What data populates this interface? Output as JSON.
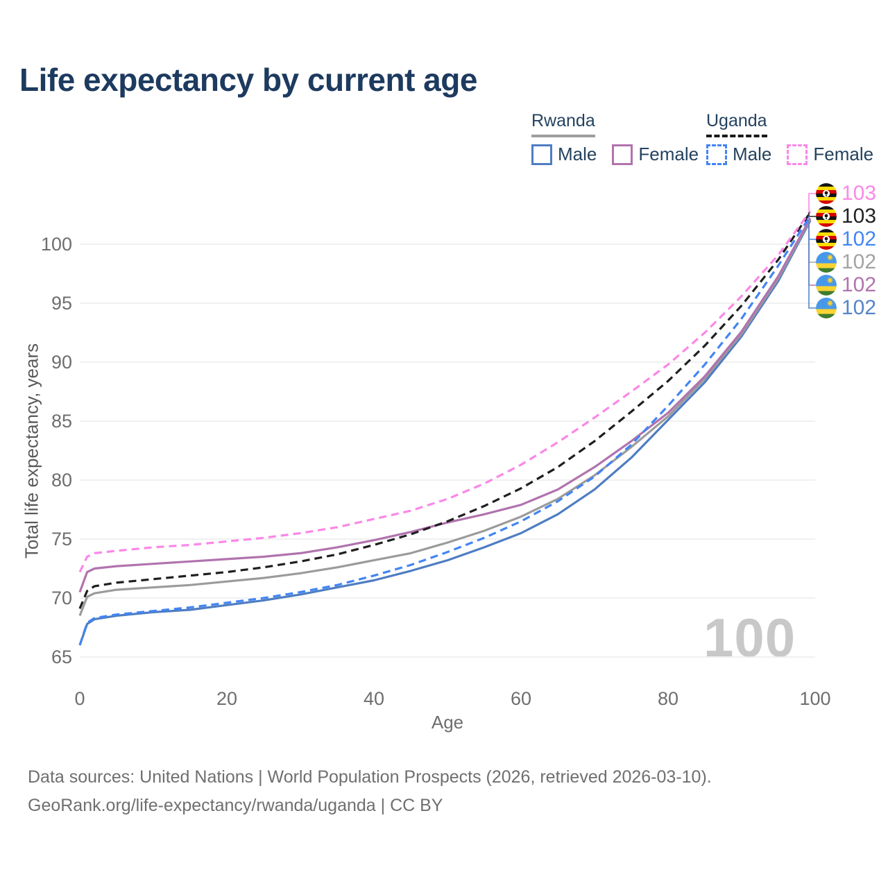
{
  "title": "Life expectancy by current age",
  "watermark": "100",
  "legend": {
    "groups": [
      {
        "country": "Rwanda",
        "underline_style": "solid",
        "underline_color": "#9e9e9e",
        "items": [
          {
            "label": "Male",
            "color": "#4e7dc2",
            "dash": false
          },
          {
            "label": "Female",
            "color": "#b173ae",
            "dash": false
          }
        ]
      },
      {
        "country": "Uganda",
        "underline_style": "dashed",
        "underline_color": "#1a1a1a",
        "items": [
          {
            "label": "Male",
            "color": "#4285f4",
            "dash": true
          },
          {
            "label": "Female",
            "color": "#fb87e8",
            "dash": true
          }
        ]
      }
    ]
  },
  "chart_data": {
    "type": "line",
    "title": "Life expectancy by current age",
    "xlabel": "Age",
    "ylabel": "Total life expectancy, years",
    "xlim": [
      0,
      100
    ],
    "ylim": [
      65,
      100
    ],
    "xticks": [
      0,
      20,
      40,
      60,
      80,
      100
    ],
    "yticks": [
      65,
      70,
      75,
      80,
      85,
      90,
      95,
      100
    ],
    "grid": "horizontal",
    "x": [
      0,
      1,
      2,
      5,
      10,
      15,
      20,
      25,
      30,
      35,
      40,
      45,
      50,
      55,
      60,
      65,
      70,
      75,
      80,
      85,
      90,
      95,
      100
    ],
    "series": [
      {
        "name": "Rwanda Male",
        "country": "Rwanda",
        "sex": "male",
        "color": "#4e7dc2",
        "dash": false,
        "values": [
          66.0,
          67.8,
          68.2,
          68.5,
          68.8,
          69.0,
          69.4,
          69.8,
          70.3,
          70.9,
          71.5,
          72.3,
          73.2,
          74.3,
          75.5,
          77.1,
          79.2,
          81.9,
          85.1,
          88.3,
          92.2,
          96.9,
          102.0
        ]
      },
      {
        "name": "Rwanda",
        "country": "Rwanda",
        "sex": "both",
        "color": "#9b9b9b",
        "dash": false,
        "values": [
          68.5,
          70.1,
          70.4,
          70.7,
          70.9,
          71.1,
          71.4,
          71.7,
          72.1,
          72.6,
          73.2,
          73.8,
          74.7,
          75.7,
          76.9,
          78.4,
          80.4,
          82.8,
          85.4,
          88.6,
          92.4,
          97.1,
          102.1
        ]
      },
      {
        "name": "Rwanda Female",
        "country": "Rwanda",
        "sex": "female",
        "color": "#b173ae",
        "dash": false,
        "values": [
          70.5,
          72.2,
          72.5,
          72.7,
          72.9,
          73.1,
          73.3,
          73.5,
          73.8,
          74.3,
          74.9,
          75.6,
          76.4,
          77.1,
          77.9,
          79.2,
          81.1,
          83.3,
          85.7,
          88.8,
          92.6,
          97.3,
          102.2
        ]
      },
      {
        "name": "Uganda Male",
        "country": "Uganda",
        "sex": "male",
        "color": "#4285f4",
        "dash": true,
        "values": [
          66.0,
          67.9,
          68.3,
          68.6,
          68.9,
          69.2,
          69.6,
          70.0,
          70.5,
          71.1,
          71.9,
          72.8,
          73.9,
          75.1,
          76.5,
          78.2,
          80.3,
          83.0,
          86.3,
          89.8,
          93.7,
          98.2,
          102.4
        ]
      },
      {
        "name": "Uganda",
        "country": "Uganda",
        "sex": "both",
        "color": "#1f1f1f",
        "dash": true,
        "values": [
          69.1,
          70.6,
          71.0,
          71.3,
          71.6,
          71.9,
          72.2,
          72.6,
          73.1,
          73.7,
          74.5,
          75.4,
          76.5,
          77.8,
          79.3,
          81.1,
          83.3,
          85.8,
          88.4,
          91.4,
          94.8,
          98.7,
          102.7
        ]
      },
      {
        "name": "Uganda Female",
        "country": "Uganda",
        "sex": "female",
        "color": "#fb87e8",
        "dash": true,
        "values": [
          72.2,
          73.5,
          73.8,
          74.0,
          74.3,
          74.5,
          74.8,
          75.1,
          75.5,
          76.0,
          76.7,
          77.4,
          78.4,
          79.7,
          81.3,
          83.2,
          85.3,
          87.5,
          89.8,
          92.5,
          95.6,
          99.1,
          102.8
        ]
      }
    ]
  },
  "right_labels": [
    {
      "value": "103",
      "color": "#fb87e8",
      "flag": "uganda",
      "flag_ref": "#flag-uganda",
      "series": 5
    },
    {
      "value": "103",
      "color": "#222222",
      "flag": "uganda",
      "flag_ref": "#flag-uganda",
      "series": 4
    },
    {
      "value": "102",
      "color": "#4285f4",
      "flag": "uganda",
      "flag_ref": "#flag-uganda",
      "series": 3
    },
    {
      "value": "102",
      "color": "#a3a3a3",
      "flag": "rwanda",
      "flag_ref": "#flag-rwanda",
      "series": 1
    },
    {
      "value": "102",
      "color": "#b173ae",
      "flag": "rwanda",
      "flag_ref": "#flag-rwanda",
      "series": 2
    },
    {
      "value": "102",
      "color": "#5585c8",
      "flag": "rwanda",
      "flag_ref": "#flag-rwanda",
      "series": 0
    }
  ],
  "footer": {
    "line1": "Data sources: United Nations | World Population Prospects (2026, retrieved 2026-03-10).",
    "line2": "GeoRank.org/life-expectancy/rwanda/uganda | CC BY"
  }
}
